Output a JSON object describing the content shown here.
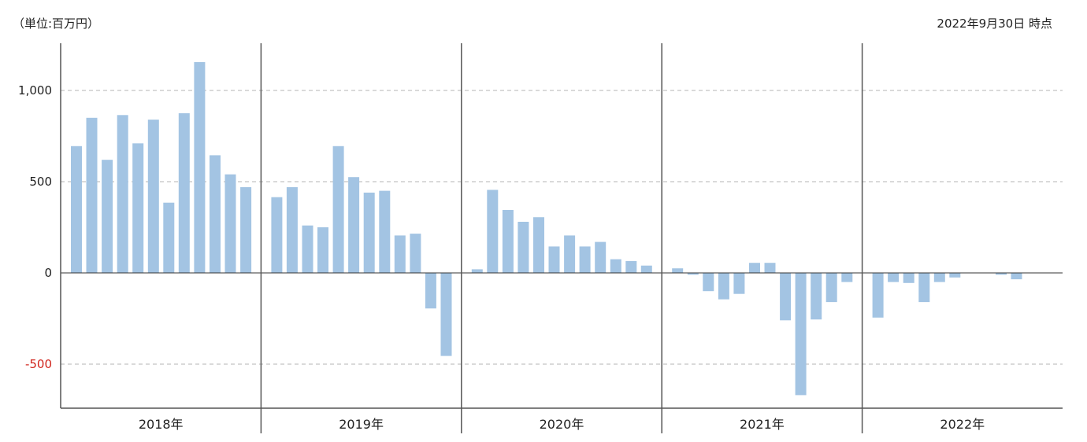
{
  "header": {
    "unit_label": "（単位:百万円）",
    "as_of": "2022年9月30日 時点"
  },
  "colors": {
    "bar": "#a3c4e3",
    "negative_tick": "#d0241c",
    "tick": "#222222",
    "grid": "#c4c4c4",
    "axis": "#555555"
  },
  "chart_data": {
    "type": "bar",
    "title": "",
    "xlabel": "",
    "ylabel": "",
    "ylim": [
      -740,
      1260
    ],
    "y_ticks": [
      {
        "value": 1000,
        "label": "1,000"
      },
      {
        "value": 500,
        "label": "500"
      },
      {
        "value": 0,
        "label": "0"
      },
      {
        "value": -500,
        "label": "-500"
      }
    ],
    "grid": "horizontal dashed",
    "groups": [
      {
        "label": "2018年",
        "values": [
          695,
          850,
          620,
          865,
          710,
          840,
          385,
          875,
          1155,
          645,
          540,
          470
        ]
      },
      {
        "label": "2019年",
        "values": [
          415,
          470,
          260,
          250,
          695,
          525,
          440,
          450,
          205,
          215,
          -195,
          -455
        ]
      },
      {
        "label": "2020年",
        "values": [
          20,
          455,
          345,
          280,
          305,
          145,
          205,
          145,
          170,
          75,
          65,
          40
        ]
      },
      {
        "label": "2021年",
        "values": [
          25,
          -10,
          -100,
          -145,
          -115,
          55,
          55,
          -260,
          -670,
          -255,
          -160,
          -50
        ]
      },
      {
        "label": "2022年",
        "values": [
          -245,
          -50,
          -55,
          -160,
          -50,
          -25,
          0,
          0,
          -10,
          -35,
          0,
          0
        ]
      }
    ]
  }
}
